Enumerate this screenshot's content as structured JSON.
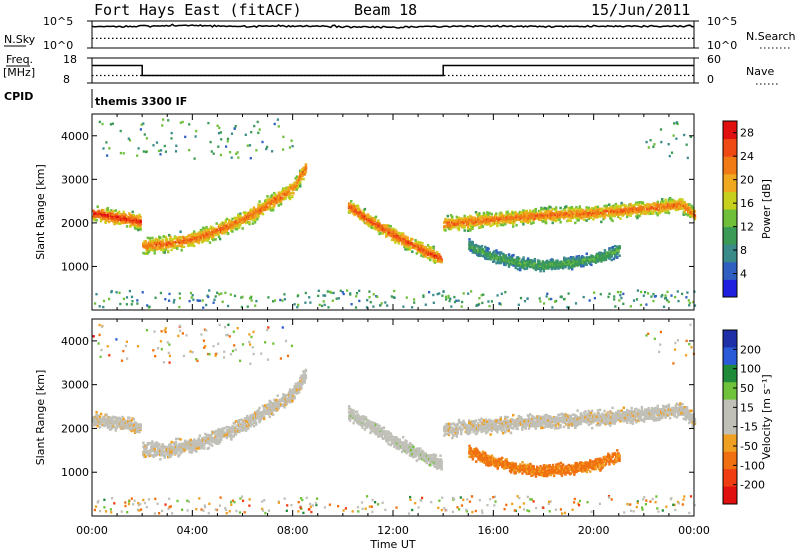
{
  "header": {
    "station": "Fort Hays East (fitACF)",
    "beam": "Beam 18",
    "date": "15/Jun/2011"
  },
  "strip_panel": {
    "left_label": "N.Sky",
    "right_label": "N.Search",
    "left_ticks": [
      "10^5",
      "10^0"
    ],
    "right_ticks": [
      "10^5",
      "10^0"
    ]
  },
  "freq_panel": {
    "left_label_top": "Freq.",
    "left_label_unit": "[MHz]",
    "left_ticks": [
      "18",
      "8"
    ],
    "right_label": "Nave",
    "right_ticks": [
      "60",
      "0"
    ]
  },
  "cpid_panel": {
    "label": "CPID",
    "program": "themis 3300 IF"
  },
  "colors": {
    "power_scale": [
      "#1f1fe0",
      "#2f5fc0",
      "#3a8a8a",
      "#3b9a55",
      "#6fbf3a",
      "#c8d01e",
      "#f0a81e",
      "#f07a14",
      "#f04a14",
      "#e01010"
    ],
    "velocity_scale": [
      "#1f2fa8",
      "#2a5ad8",
      "#1f8a3a",
      "#6fc23a",
      "#c0c0b8",
      "#c0c0b8",
      "#f0a020",
      "#f07010",
      "#f03c10",
      "#e01010"
    ]
  },
  "chart_data": [
    {
      "type": "line",
      "title": "",
      "xlabel": "",
      "ylabel": "N.Sky",
      "y_scale": "log",
      "ylim": [
        1,
        100000
      ],
      "x_unit": "hours UT",
      "xlim": [
        0,
        24
      ],
      "series": [
        {
          "name": "N.Sky",
          "style": "solid",
          "x": [
            0,
            2,
            4,
            6,
            8,
            10,
            12,
            14,
            16,
            18,
            20,
            22,
            24
          ],
          "values": [
            8000,
            12000,
            15000,
            10000,
            12000,
            9000,
            7000,
            10000,
            12000,
            9000,
            10000,
            12000,
            10000
          ]
        },
        {
          "name": "N.Search",
          "style": "dotted",
          "x": [
            0,
            4,
            8,
            12,
            16,
            20,
            24
          ],
          "values": [
            60,
            60,
            60,
            60,
            60,
            60,
            60
          ]
        }
      ]
    },
    {
      "type": "line",
      "ylabel": "Freq. [MHz]",
      "ylim": [
        8,
        18
      ],
      "y2label": "Nave",
      "y2lim": [
        0,
        60
      ],
      "xlim": [
        0,
        24
      ],
      "series": [
        {
          "name": "Freq.",
          "style": "solid",
          "x": [
            0,
            2,
            2,
            14,
            14,
            24
          ],
          "values": [
            15,
            15,
            11,
            11,
            15,
            15
          ]
        },
        {
          "name": "Nave",
          "style": "dotted",
          "axis": "right",
          "x": [
            0,
            24
          ],
          "values": [
            18,
            18
          ]
        }
      ]
    },
    {
      "type": "heatmap",
      "title": "",
      "ylabel": "Slant Range [km]",
      "ylim": [
        0,
        4500
      ],
      "yticks": [
        "1000",
        "2000",
        "3000",
        "4000"
      ],
      "xlim": [
        0,
        24
      ],
      "colorbar_label": "Power [dB]",
      "colorbar_ticks": [
        "4",
        "8",
        "12",
        "16",
        "20",
        "24",
        "28"
      ],
      "colorbar_range": [
        0,
        30
      ],
      "echo_bands": [
        {
          "x": [
            0,
            0.5,
            1,
            1.5,
            1.9
          ],
          "range_km": [
            2250,
            2200,
            2150,
            2100,
            2050
          ],
          "width_km": 220,
          "power_db": 28
        },
        {
          "x": [
            2,
            3,
            4,
            5,
            6,
            7,
            8,
            8.5
          ],
          "range_km": [
            1500,
            1550,
            1650,
            1850,
            2100,
            2450,
            2800,
            3300
          ],
          "width_km": 250,
          "power_db": 24
        },
        {
          "x": [
            10.2,
            11,
            12,
            13,
            13.9
          ],
          "range_km": [
            2400,
            2100,
            1750,
            1450,
            1200
          ],
          "width_km": 220,
          "power_db": 26
        },
        {
          "x": [
            14,
            16,
            18,
            20,
            22,
            23.5,
            24
          ],
          "range_km": [
            2000,
            2100,
            2200,
            2250,
            2350,
            2450,
            2200
          ],
          "width_km": 230,
          "power_db": 24
        },
        {
          "x": [
            15,
            16,
            17,
            18,
            19,
            20,
            21
          ],
          "range_km": [
            1500,
            1250,
            1100,
            1050,
            1100,
            1200,
            1400
          ],
          "width_km": 180,
          "power_db": 12
        }
      ]
    },
    {
      "type": "heatmap",
      "title": "",
      "xlabel": "Time UT",
      "ylabel": "Slant Range [km]",
      "ylim": [
        0,
        4500
      ],
      "yticks": [
        "1000",
        "2000",
        "3000",
        "4000"
      ],
      "xlim": [
        0,
        24
      ],
      "xticks": [
        "00:00",
        "04:00",
        "08:00",
        "12:00",
        "16:00",
        "20:00",
        "00:00"
      ],
      "colorbar_label": "Velocity [m s⁻¹]",
      "colorbar_ticks": [
        "200",
        "100",
        "50",
        "15",
        "-15",
        "-50",
        "-100",
        "-200"
      ],
      "echo_bands": [
        {
          "x": [
            0,
            0.5,
            1,
            1.5,
            1.9
          ],
          "range_km": [
            2250,
            2200,
            2150,
            2100,
            2050
          ],
          "width_km": 220,
          "velocity": 0
        },
        {
          "x": [
            2,
            3,
            4,
            5,
            6,
            7,
            8,
            8.5
          ],
          "range_km": [
            1500,
            1550,
            1650,
            1850,
            2100,
            2450,
            2800,
            3300
          ],
          "width_km": 250,
          "velocity": 0
        },
        {
          "x": [
            10.2,
            11,
            12,
            13,
            13.9
          ],
          "range_km": [
            2400,
            2100,
            1750,
            1450,
            1200
          ],
          "width_km": 220,
          "velocity": 30
        },
        {
          "x": [
            14,
            16,
            18,
            20,
            22,
            23.5,
            24
          ],
          "range_km": [
            2000,
            2100,
            2200,
            2250,
            2350,
            2450,
            2200
          ],
          "width_km": 230,
          "velocity": 0
        },
        {
          "x": [
            15,
            16,
            17,
            18,
            19,
            20,
            21
          ],
          "range_km": [
            1500,
            1250,
            1100,
            1050,
            1100,
            1200,
            1400
          ],
          "width_km": 180,
          "velocity": -60
        }
      ]
    }
  ]
}
